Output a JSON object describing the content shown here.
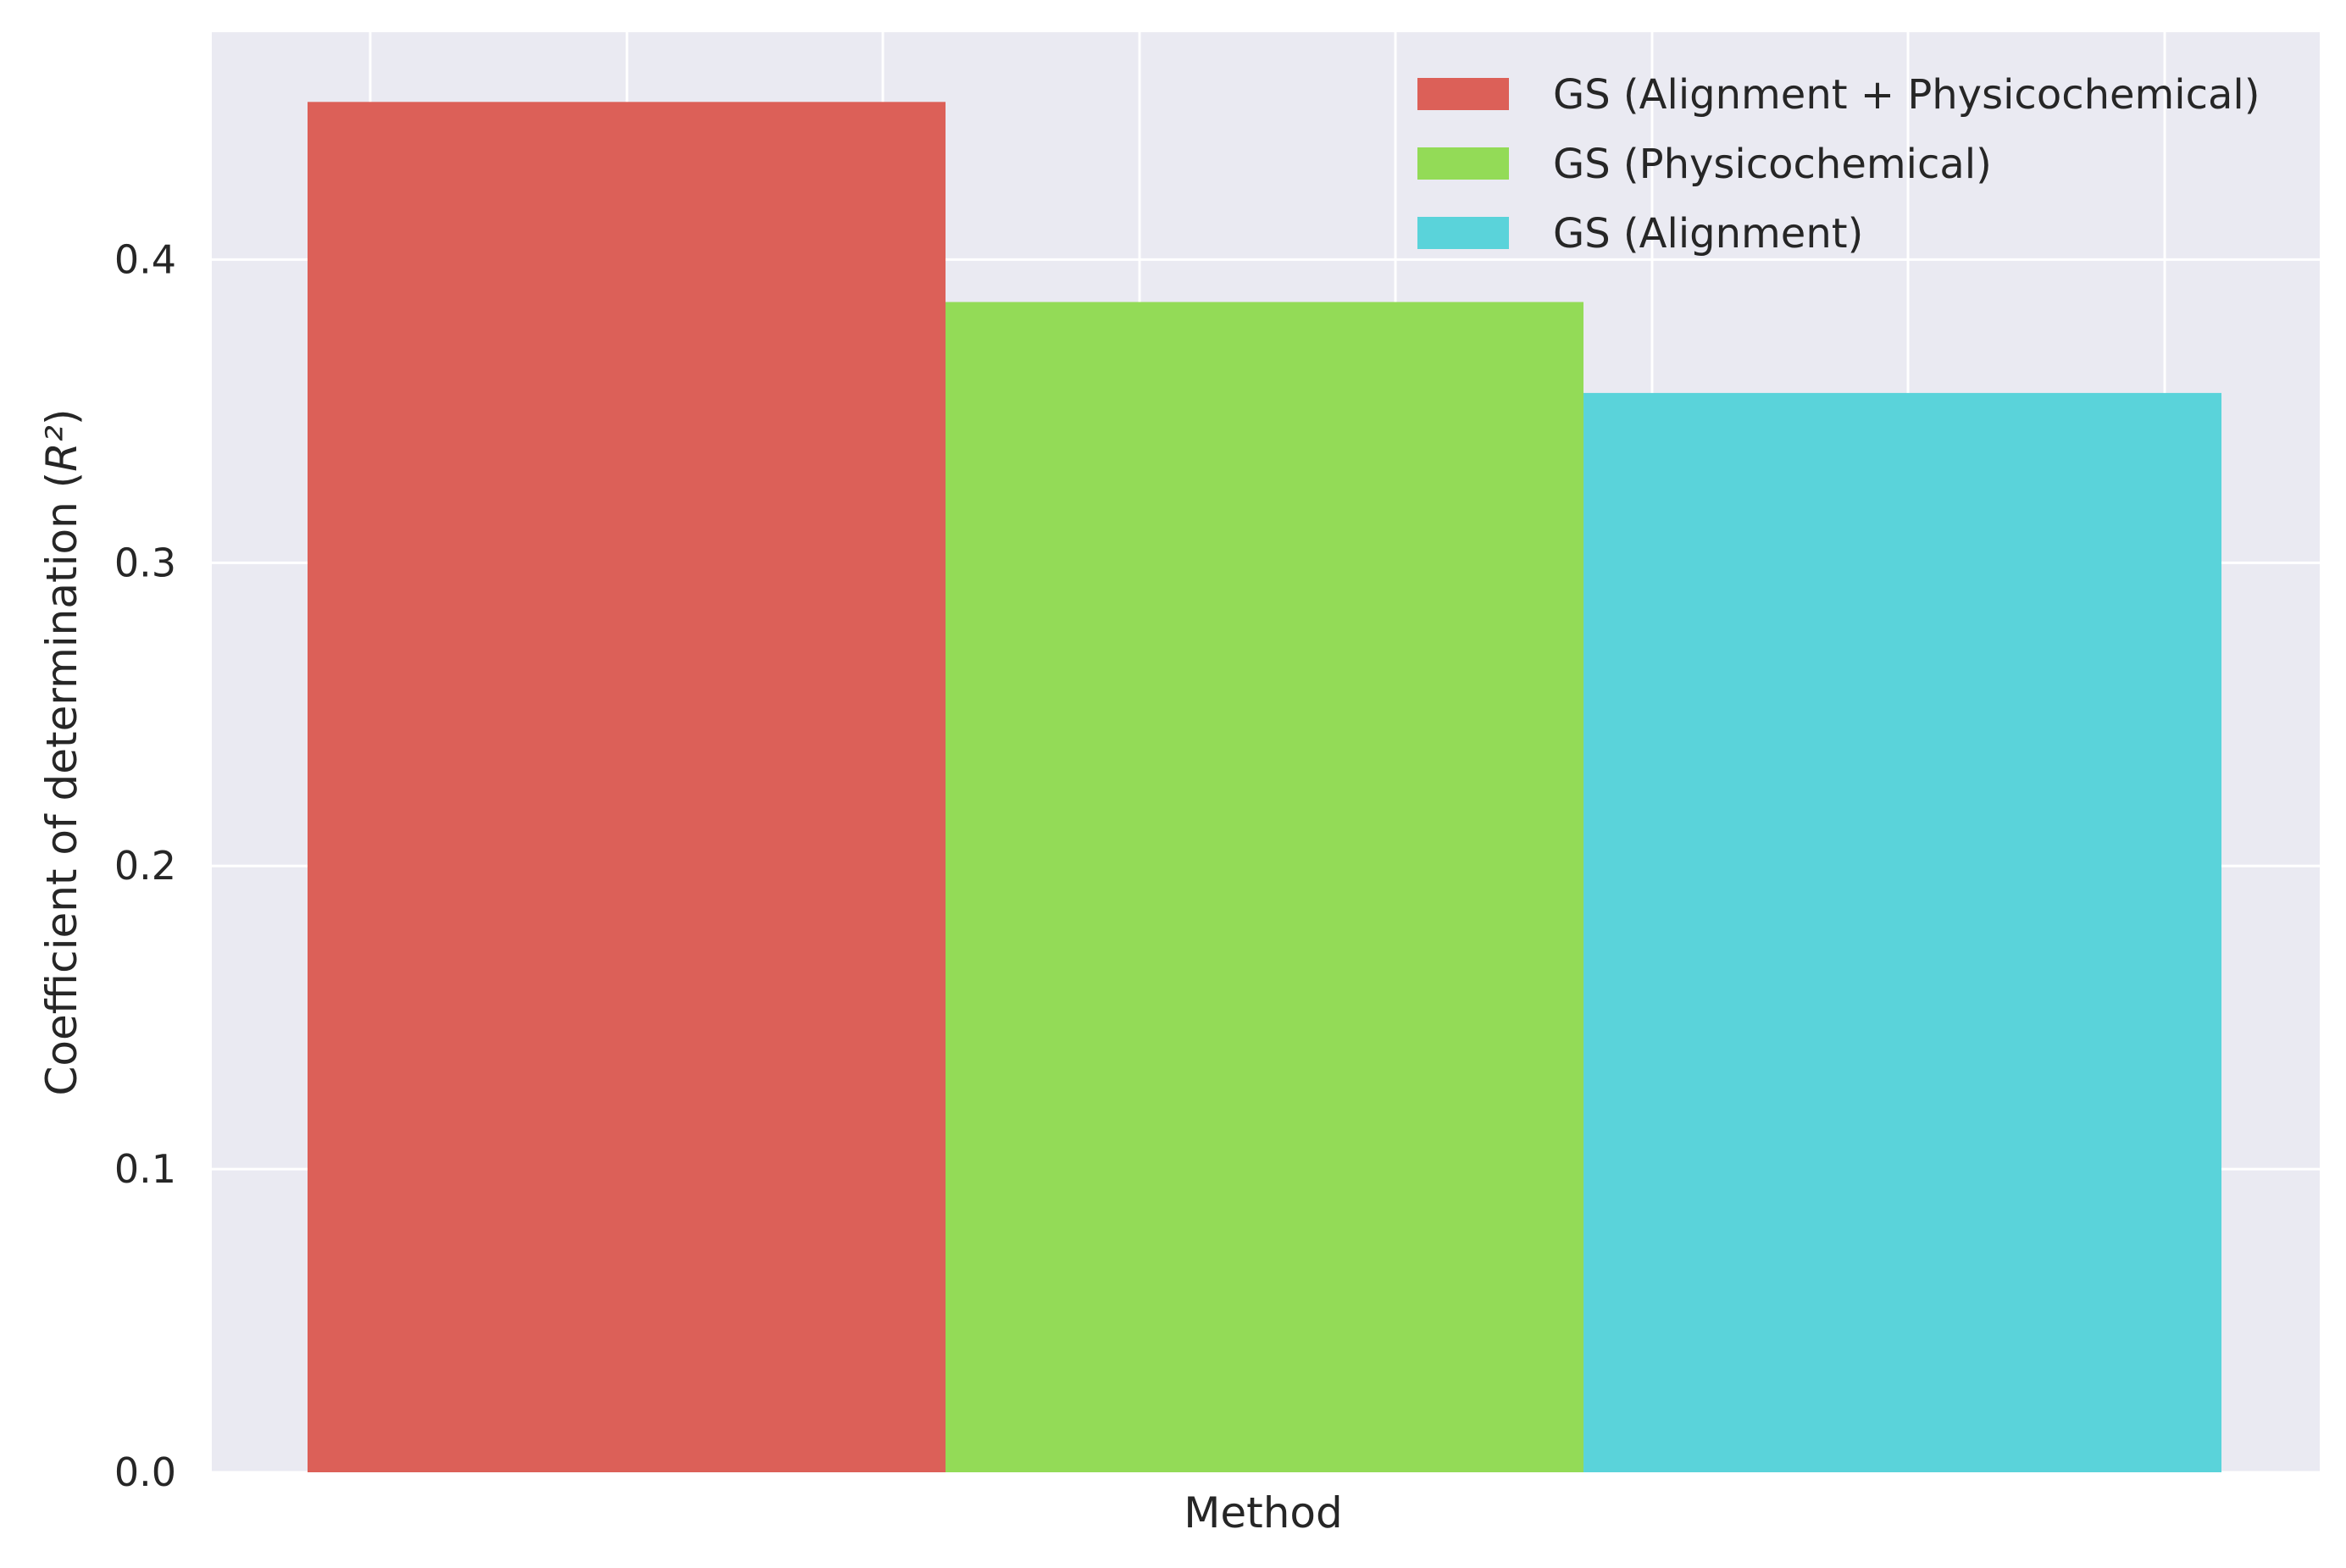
{
  "chart_data": {
    "type": "bar",
    "categories": [
      "Method"
    ],
    "series": [
      {
        "name": "GS (Alignment + Physicochemical)",
        "values": [
          0.452
        ],
        "color": "#DC6058"
      },
      {
        "name": "GS (Physicochemical)",
        "values": [
          0.386
        ],
        "color": "#93DB57"
      },
      {
        "name": "GS (Alignment)",
        "values": [
          0.356
        ],
        "color": "#5AD3DA"
      }
    ],
    "title": "",
    "xlabel": "Method",
    "ylabel": "Coefficient of determination",
    "ylabel_math": "R²",
    "ylim": [
      0,
      0.475
    ],
    "yticks": [
      0.0,
      0.1,
      0.2,
      0.3,
      0.4
    ],
    "ytick_labels": [
      "0.0",
      "0.1",
      "0.2",
      "0.3",
      "0.4"
    ],
    "grid": true,
    "legend_position": "top-right",
    "style": {
      "plot_background": "#EAEAF2",
      "grid_color": "#FFFFFF"
    }
  }
}
